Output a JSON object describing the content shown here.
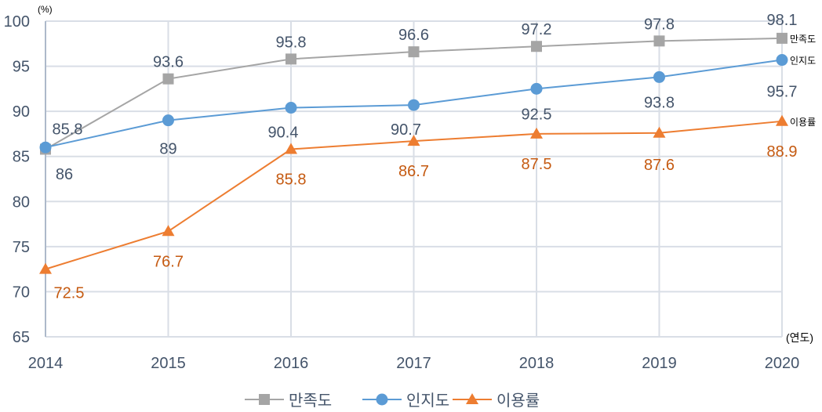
{
  "chart_data": {
    "type": "line",
    "yunit": "(%)",
    "xunit": "(연도)",
    "categories": [
      "2014",
      "2015",
      "2016",
      "2017",
      "2018",
      "2019",
      "2020"
    ],
    "ylim": [
      65,
      100
    ],
    "yticks": [
      65,
      70,
      75,
      80,
      85,
      90,
      95,
      100
    ],
    "grid": true,
    "legend_placement": "bottom",
    "series": [
      {
        "name": "만족도",
        "marker": "square",
        "color": "#A5A5A5",
        "label_color": "#44546A",
        "values": [
          85.8,
          93.6,
          95.8,
          96.6,
          97.2,
          97.8,
          98.1
        ]
      },
      {
        "name": "인지도",
        "marker": "circle",
        "color": "#5B9BD5",
        "label_color": "#44546A",
        "values": [
          86,
          89,
          90.4,
          90.7,
          92.5,
          93.8,
          95.7
        ]
      },
      {
        "name": "이용률",
        "marker": "triangle",
        "color": "#ED7D31",
        "label_color": "#C55A11",
        "values": [
          72.5,
          76.7,
          85.8,
          86.7,
          87.5,
          87.6,
          88.9
        ]
      }
    ]
  }
}
